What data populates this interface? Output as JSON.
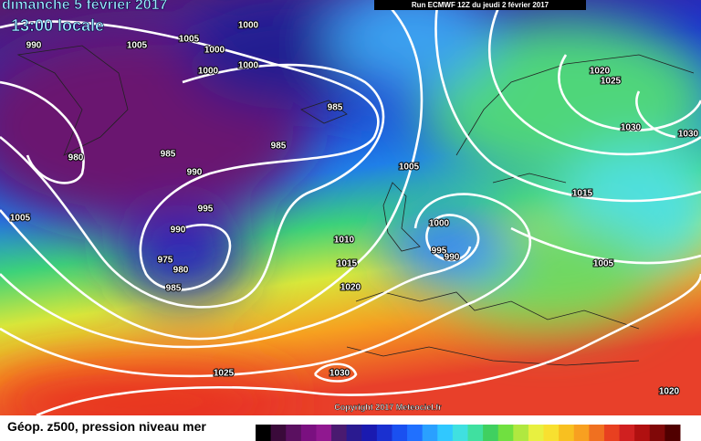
{
  "header": {
    "title": "dimanche 5 février 2017",
    "time": "13:00 locale",
    "run": "Run ECMWF 12Z du jeudi 2 février 2017"
  },
  "copyright": "Copyright 2017 Meteociel.fr",
  "legend": {
    "title": "Géop. z500, pression niveau mer"
  },
  "isobar_labels": [
    990,
    1005,
    1005,
    1000,
    1000,
    1000,
    1000,
    985,
    985,
    980,
    985,
    990,
    995,
    1005,
    990,
    975,
    980,
    985,
    1005,
    1000,
    995,
    990,
    1010,
    1015,
    1020,
    1020,
    1025,
    1030,
    1030,
    1015,
    1005,
    1025,
    1030,
    1020
  ]
}
